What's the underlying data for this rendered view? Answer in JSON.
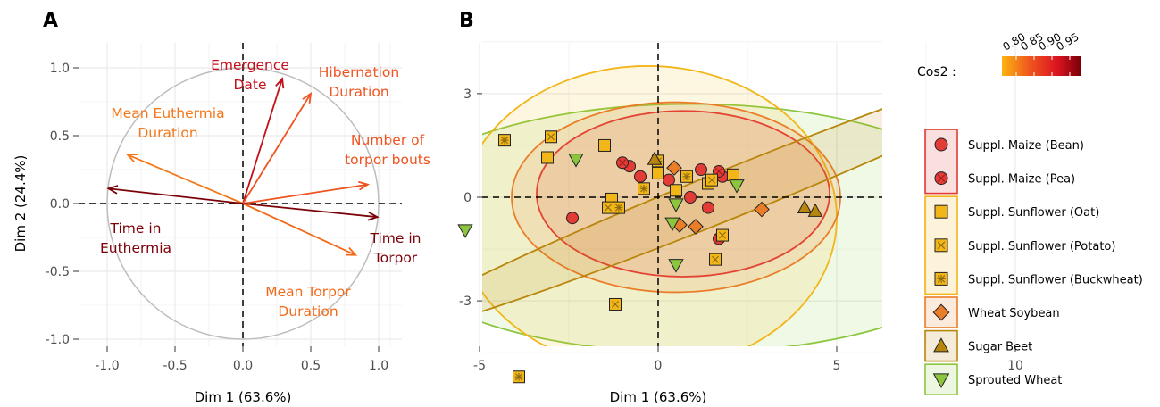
{
  "panels": {
    "a_letter": "A",
    "b_letter": "B"
  },
  "colors": {
    "cos_low": "#fbb40f",
    "cos_mid": "#f0561f",
    "cos_high": "#7b0008",
    "circle": "#bdbdbd",
    "grid": "#ebebeb",
    "maize": "#e33b35",
    "sunflower": "#f2b619",
    "wheat_soybean": "#ea7d28",
    "sugar_beet": "#b8860b",
    "sprouted_wheat": "#8cc63e"
  },
  "chart_data": [
    {
      "type": "scatter",
      "subtype": "pca-variable-correlation-circle",
      "xlabel": "Dim 1 (63.6%)",
      "ylabel": "Dim 2 (24.4%)",
      "xlim": [
        -1.1,
        1.1
      ],
      "ylim": [
        -1.0,
        1.0
      ],
      "x_ticks": [
        {
          "value": -1.0,
          "label": "-1.0"
        },
        {
          "value": -0.5,
          "label": "-0.5"
        },
        {
          "value": 0.0,
          "label": "0.0"
        },
        {
          "value": 0.5,
          "label": "0.5"
        },
        {
          "value": 1.0,
          "label": "1.0"
        }
      ],
      "y_ticks": [
        {
          "value": 1.0,
          "label": "1.0"
        },
        {
          "value": 0.5,
          "label": "0.5"
        },
        {
          "value": 0.0,
          "label": "0.0"
        },
        {
          "value": -0.5,
          "label": "-0.5"
        },
        {
          "value": -1.0,
          "label": "-1.0"
        }
      ],
      "grid": true,
      "vectors": [
        {
          "label": [
            "Emergence",
            "Date"
          ],
          "x": 0.29,
          "y": 0.92,
          "cos2": 0.93
        },
        {
          "label": [
            "Hibernation",
            "Duration"
          ],
          "x": 0.5,
          "y": 0.81,
          "cos2": 0.84
        },
        {
          "label": [
            "Mean Euthermia",
            "Duration"
          ],
          "x": -0.85,
          "y": 0.36,
          "cos2": 0.81
        },
        {
          "label": [
            "Number of",
            "torpor bouts"
          ],
          "x": 0.92,
          "y": 0.14,
          "cos2": 0.84
        },
        {
          "label": [
            "Time in",
            "Euthermia"
          ],
          "x": -0.99,
          "y": 0.11,
          "cos2": 0.99
        },
        {
          "label": [
            "Time in",
            "Torpor"
          ],
          "x": 0.99,
          "y": -0.1,
          "cos2": 0.99
        },
        {
          "label": [
            "Mean Torpor",
            "Duration"
          ],
          "x": 0.83,
          "y": -0.38,
          "cos2": 0.82
        }
      ],
      "colorbar": {
        "title": "Cos2 :",
        "min": 0.76,
        "max": 0.98,
        "ticks": [
          {
            "value": 0.8,
            "label": "0.80"
          },
          {
            "value": 0.85,
            "label": "0.85"
          },
          {
            "value": 0.9,
            "label": "0.90"
          },
          {
            "value": 0.95,
            "label": "0.95"
          }
        ]
      }
    },
    {
      "type": "scatter",
      "subtype": "pca-individuals-with-confidence-ellipses",
      "xlabel": "Dim 1 (63.6%)",
      "ylabel": "",
      "xlim": [
        -8.7,
        12.5
      ],
      "ylim": [
        -5.0,
        4.7
      ],
      "x_ticks": [
        {
          "value": -5,
          "label": "-5"
        },
        {
          "value": 0,
          "label": "0"
        },
        {
          "value": 5,
          "label": "5"
        },
        {
          "value": 10,
          "label": "10"
        }
      ],
      "y_ticks": [
        {
          "value": 3,
          "label": "3"
        },
        {
          "value": 0,
          "label": "0"
        },
        {
          "value": -3,
          "label": "-3"
        }
      ],
      "grid": true,
      "ellipses": [
        {
          "group": "sprouted",
          "cx": 0.9,
          "cy": -0.9,
          "rx": 8.9,
          "ry": 3.6,
          "angle": 0,
          "color_key": "sprouted_wheat"
        },
        {
          "group": "sunflower",
          "cx": -0.3,
          "cy": -0.6,
          "rx": 5.3,
          "ry": 4.4,
          "angle": 0,
          "color_key": "sunflower"
        },
        {
          "group": "maize",
          "cx": 0.7,
          "cy": 0.1,
          "rx": 4.1,
          "ry": 2.4,
          "angle": 0,
          "color_key": "maize"
        },
        {
          "group": "soybean",
          "cx": 0.5,
          "cy": 0.0,
          "rx": 4.6,
          "ry": 2.75,
          "angle": 0,
          "color_key": "wheat_soybean"
        },
        {
          "group": "beet",
          "cx": 2.0,
          "cy": 0.1,
          "rx": 10.4,
          "ry": 0.7,
          "angle": -22,
          "color_key": "sugar_beet"
        }
      ],
      "legend": [
        {
          "label": "Suppl. Maize (Bean)",
          "group": "maize",
          "shape": "circle",
          "mark": "none"
        },
        {
          "label": "Suppl. Maize (Pea)",
          "group": "maize",
          "shape": "circle",
          "mark": "x"
        },
        {
          "label": "Suppl. Sunflower (Oat)",
          "group": "sunflower",
          "shape": "square",
          "mark": "none"
        },
        {
          "label": "Suppl. Sunflower (Potato)",
          "group": "sunflower",
          "shape": "square",
          "mark": "x"
        },
        {
          "label": "Suppl. Sunflower (Buckwheat)",
          "group": "sunflower",
          "shape": "square",
          "mark": "star"
        },
        {
          "label": "Wheat Soybean",
          "group": "soybean",
          "shape": "diamond",
          "mark": "none"
        },
        {
          "label": "Sugar Beet",
          "group": "beet",
          "shape": "triangle-up",
          "mark": "none"
        },
        {
          "label": "Sprouted Wheat",
          "group": "sprouted",
          "shape": "triangle-down",
          "mark": "none"
        }
      ],
      "points": [
        {
          "series": "Suppl. Maize (Bean)",
          "x": -0.8,
          "y": 0.9
        },
        {
          "series": "Suppl. Maize (Bean)",
          "x": -0.5,
          "y": 0.6
        },
        {
          "series": "Suppl. Maize (Bean)",
          "x": 0.3,
          "y": 0.5
        },
        {
          "series": "Suppl. Maize (Bean)",
          "x": 1.2,
          "y": 0.8
        },
        {
          "series": "Suppl. Maize (Bean)",
          "x": 1.8,
          "y": 0.6
        },
        {
          "series": "Suppl. Maize (Bean)",
          "x": -2.4,
          "y": -0.6
        },
        {
          "series": "Suppl. Maize (Bean)",
          "x": 1.4,
          "y": -0.3
        },
        {
          "series": "Suppl. Maize (Bean)",
          "x": 0.9,
          "y": 0.0
        },
        {
          "series": "Suppl. Maize (Pea)",
          "x": -1.0,
          "y": 1.0
        },
        {
          "series": "Suppl. Maize (Pea)",
          "x": 1.7,
          "y": 0.75
        },
        {
          "series": "Suppl. Maize (Pea)",
          "x": 1.7,
          "y": -1.2
        },
        {
          "series": "Suppl. Sunflower (Oat)",
          "x": -1.5,
          "y": 1.5
        },
        {
          "series": "Suppl. Sunflower (Oat)",
          "x": -3.1,
          "y": 1.15
        },
        {
          "series": "Suppl. Sunflower (Oat)",
          "x": 0.0,
          "y": 0.7
        },
        {
          "series": "Suppl. Sunflower (Oat)",
          "x": 2.1,
          "y": 0.65
        },
        {
          "series": "Suppl. Sunflower (Oat)",
          "x": -1.3,
          "y": -0.05
        },
        {
          "series": "Suppl. Sunflower (Oat)",
          "x": 1.4,
          "y": 0.4
        },
        {
          "series": "Suppl. Sunflower (Oat)",
          "x": 0.5,
          "y": 0.2
        },
        {
          "series": "Suppl. Sunflower (Potato)",
          "x": -3.0,
          "y": 1.75
        },
        {
          "series": "Suppl. Sunflower (Potato)",
          "x": -1.4,
          "y": -0.3
        },
        {
          "series": "Suppl. Sunflower (Potato)",
          "x": 1.5,
          "y": 0.5
        },
        {
          "series": "Suppl. Sunflower (Potato)",
          "x": 1.8,
          "y": -1.1
        },
        {
          "series": "Suppl. Sunflower (Potato)",
          "x": 1.6,
          "y": -1.8
        },
        {
          "series": "Suppl. Sunflower (Potato)",
          "x": -1.2,
          "y": -3.1
        },
        {
          "series": "Suppl. Sunflower (Buckwheat)",
          "x": -4.3,
          "y": 1.65
        },
        {
          "series": "Suppl. Sunflower (Buckwheat)",
          "x": 0.0,
          "y": 1.05
        },
        {
          "series": "Suppl. Sunflower (Buckwheat)",
          "x": -0.4,
          "y": 0.25
        },
        {
          "series": "Suppl. Sunflower (Buckwheat)",
          "x": 0.8,
          "y": 0.6
        },
        {
          "series": "Suppl. Sunflower (Buckwheat)",
          "x": -1.1,
          "y": -0.3
        },
        {
          "series": "Suppl. Sunflower (Buckwheat)",
          "x": -3.9,
          "y": -5.2
        },
        {
          "series": "Wheat Soybean",
          "x": 0.45,
          "y": 0.85
        },
        {
          "series": "Wheat Soybean",
          "x": 0.6,
          "y": -0.8
        },
        {
          "series": "Wheat Soybean",
          "x": 1.05,
          "y": -0.85
        },
        {
          "series": "Wheat Soybean",
          "x": 2.9,
          "y": -0.35
        },
        {
          "series": "Sugar Beet",
          "x": -0.1,
          "y": 1.1
        },
        {
          "series": "Sugar Beet",
          "x": 4.1,
          "y": -0.3
        },
        {
          "series": "Sugar Beet",
          "x": 4.4,
          "y": -0.4
        },
        {
          "series": "Sprouted Wheat",
          "x": -2.3,
          "y": 1.1
        },
        {
          "series": "Sprouted Wheat",
          "x": 0.5,
          "y": -0.2
        },
        {
          "series": "Sprouted Wheat",
          "x": 0.4,
          "y": -0.75
        },
        {
          "series": "Sprouted Wheat",
          "x": 2.2,
          "y": 0.35
        },
        {
          "series": "Sprouted Wheat",
          "x": -5.4,
          "y": -0.95
        },
        {
          "series": "Sprouted Wheat",
          "x": 0.5,
          "y": -1.95
        }
      ]
    }
  ]
}
